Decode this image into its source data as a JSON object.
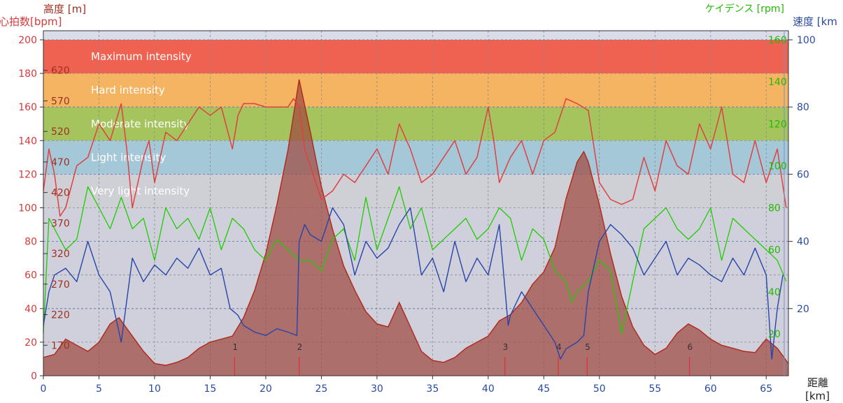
{
  "colors": {
    "heart_rate_axis": "#d63a3a",
    "altitude_axis": "#a03020",
    "cadence_axis": "#22bb00",
    "speed_axis": "#2a4aa0",
    "heart_rate_line": "#e04040",
    "cadence_line": "#20cc00",
    "speed_line": "#2844a8",
    "altitude_fill": "#9e4a40",
    "marker_line": "#e03030"
  },
  "chart_data": {
    "type": "line",
    "axis_titles": {
      "altitude": "高度 [m]",
      "heart_rate": "心拍数[bpm]",
      "cadence": "ケイデンス [rpm]",
      "speed": "速度 [km",
      "distance": "距離",
      "distance_unit": "[km]"
    },
    "x_axis": {
      "range": [
        0,
        67
      ],
      "ticks": [
        0,
        5,
        10,
        15,
        20,
        25,
        30,
        35,
        40,
        45,
        50,
        55,
        60,
        65
      ]
    },
    "heart_rate_axis": {
      "range": [
        0,
        200
      ],
      "ticks": [
        0,
        20,
        40,
        60,
        80,
        100,
        120,
        140,
        160,
        180,
        200
      ]
    },
    "altitude_axis": {
      "range": [
        120,
        670
      ],
      "ticks": [
        170,
        220,
        270,
        320,
        370,
        420,
        470,
        520,
        570,
        620
      ]
    },
    "cadence_axis": {
      "range": [
        0,
        160
      ],
      "ticks": [
        20,
        40,
        60,
        80,
        100,
        120,
        140,
        160
      ]
    },
    "speed_axis": {
      "range": [
        0,
        100
      ],
      "ticks": [
        20,
        40,
        60,
        80,
        100
      ]
    },
    "zones": [
      {
        "label": "Maximum intensity",
        "from": 180,
        "to": 200,
        "color": "#ef6150"
      },
      {
        "label": "Hard intensity",
        "from": 160,
        "to": 180,
        "color": "#f5b461"
      },
      {
        "label": "Moderate intensity",
        "from": 140,
        "to": 160,
        "color": "#a6c45d"
      },
      {
        "label": "Light intensity",
        "from": 120,
        "to": 140,
        "color": "#a5c8d8"
      },
      {
        "label": "Very light intensity",
        "from": 100,
        "to": 120,
        "color": "#cfcfd6"
      }
    ],
    "below_zone_color": "#cfd0dc",
    "markers": [
      {
        "label": "1",
        "x": 17.2
      },
      {
        "label": "2",
        "x": 23.0
      },
      {
        "label": "3",
        "x": 41.5
      },
      {
        "label": "4",
        "x": 46.3
      },
      {
        "label": "5",
        "x": 48.9
      },
      {
        "label": "6",
        "x": 58.1
      }
    ],
    "series": [
      {
        "key": "altitude",
        "name": "高度",
        "units": "m",
        "x": [
          0,
          1,
          2,
          3,
          4,
          5,
          6,
          6.8,
          8,
          9,
          10,
          11,
          12,
          13,
          14,
          15,
          16,
          17,
          18,
          19,
          20,
          21,
          22,
          23,
          24,
          25,
          26,
          27,
          28,
          29,
          30,
          31,
          32,
          33,
          34,
          35,
          36,
          37,
          38,
          39,
          40,
          41,
          42,
          43,
          44,
          45,
          46,
          47,
          48,
          48.6,
          49,
          50,
          51,
          52,
          53,
          54,
          55,
          56,
          57,
          58,
          59,
          60,
          61,
          62,
          63,
          64,
          65,
          66,
          67
        ],
        "values": [
          150,
          155,
          180,
          170,
          160,
          175,
          205,
          215,
          185,
          160,
          140,
          137,
          142,
          150,
          165,
          175,
          180,
          185,
          215,
          260,
          320,
          400,
          490,
          605,
          520,
          430,
          360,
          300,
          260,
          225,
          205,
          200,
          240,
          200,
          160,
          145,
          142,
          150,
          165,
          175,
          185,
          210,
          220,
          240,
          270,
          290,
          330,
          410,
          470,
          487,
          470,
          400,
          320,
          250,
          200,
          170,
          155,
          165,
          190,
          205,
          195,
          180,
          170,
          165,
          160,
          158,
          180,
          165,
          140
        ]
      },
      {
        "key": "heart_rate",
        "name": "心拍数",
        "units": "bpm",
        "x": [
          0,
          0.5,
          1,
          1.5,
          2,
          3,
          4,
          5,
          6,
          7,
          7.5,
          8,
          9,
          9.5,
          10,
          11,
          12,
          13,
          14,
          15,
          16,
          17,
          17.5,
          18,
          19,
          20,
          21,
          22,
          22.5,
          23,
          23.5,
          24,
          25,
          26,
          27,
          28,
          29,
          30,
          31,
          32,
          33,
          34,
          35,
          36,
          37,
          38,
          39,
          40,
          40.5,
          41,
          42,
          43,
          44,
          45,
          46,
          47,
          48,
          49,
          50,
          51,
          52,
          53,
          54,
          55,
          56,
          57,
          58,
          59,
          60,
          61,
          62,
          63,
          64,
          65,
          66,
          66.8
        ],
        "values": [
          110,
          135,
          120,
          95,
          100,
          125,
          130,
          150,
          140,
          162,
          135,
          100,
          130,
          140,
          115,
          145,
          140,
          150,
          160,
          155,
          160,
          135,
          155,
          162,
          162,
          160,
          160,
          160,
          165,
          160,
          135,
          125,
          105,
          110,
          120,
          115,
          125,
          135,
          120,
          150,
          135,
          115,
          120,
          130,
          140,
          120,
          130,
          160,
          140,
          115,
          130,
          140,
          120,
          140,
          145,
          165,
          162,
          158,
          115,
          105,
          102,
          105,
          130,
          110,
          140,
          125,
          120,
          150,
          135,
          160,
          120,
          115,
          140,
          115,
          135,
          100
        ]
      },
      {
        "key": "cadence",
        "name": "ケイデンス",
        "units": "rpm",
        "x": [
          0,
          0.5,
          1,
          2,
          3,
          4,
          5,
          6,
          7,
          8,
          9,
          10,
          11,
          12,
          13,
          14,
          15,
          16,
          17,
          18,
          19,
          20,
          21,
          22,
          23,
          24,
          25,
          26,
          27,
          28,
          29,
          30,
          31,
          32,
          33,
          34,
          35,
          36,
          37,
          38,
          39,
          40,
          41,
          42,
          43,
          44,
          45,
          46,
          47,
          47.5,
          48,
          49,
          50,
          51,
          52,
          53,
          54,
          55,
          56,
          57,
          58,
          59,
          60,
          61,
          62,
          63,
          64,
          65,
          66,
          66.8
        ],
        "values": [
          20,
          75,
          70,
          60,
          65,
          90,
          80,
          70,
          85,
          70,
          75,
          55,
          80,
          70,
          75,
          65,
          80,
          60,
          75,
          70,
          60,
          55,
          65,
          60,
          55,
          55,
          50,
          65,
          70,
          55,
          85,
          60,
          75,
          90,
          70,
          80,
          60,
          65,
          70,
          75,
          65,
          70,
          80,
          75,
          55,
          70,
          65,
          50,
          45,
          35,
          40,
          45,
          55,
          50,
          20,
          45,
          70,
          75,
          80,
          70,
          65,
          70,
          80,
          55,
          75,
          70,
          65,
          60,
          55,
          45
        ]
      },
      {
        "key": "speed",
        "name": "速度",
        "units": "km/h",
        "x": [
          0,
          0.5,
          1,
          2,
          3,
          4,
          5,
          6,
          7,
          8,
          9,
          10,
          11,
          12,
          13,
          14,
          15,
          16,
          16.8,
          17.5,
          18,
          19,
          20,
          21,
          22,
          22.8,
          23,
          23.5,
          24,
          25,
          26,
          27,
          28,
          29,
          30,
          31,
          32,
          33,
          34,
          35,
          36,
          37,
          38,
          39,
          40,
          41,
          41.8,
          42,
          43,
          44,
          45,
          46,
          46.5,
          47,
          48,
          48.6,
          49,
          50,
          51,
          52,
          53,
          54,
          55,
          56,
          57,
          58,
          59,
          60,
          61,
          62,
          63,
          64,
          65,
          65.5,
          66,
          66.5
        ],
        "values": [
          15,
          25,
          30,
          32,
          28,
          40,
          30,
          25,
          10,
          35,
          28,
          33,
          30,
          35,
          32,
          38,
          30,
          32,
          20,
          18,
          15,
          13,
          12,
          14,
          13,
          12,
          40,
          45,
          42,
          40,
          50,
          45,
          30,
          40,
          35,
          38,
          45,
          50,
          30,
          35,
          25,
          40,
          28,
          35,
          30,
          45,
          15,
          18,
          25,
          20,
          15,
          10,
          5,
          8,
          10,
          12,
          25,
          40,
          45,
          42,
          38,
          30,
          35,
          40,
          30,
          35,
          33,
          30,
          28,
          35,
          30,
          38,
          30,
          5,
          20,
          30
        ]
      }
    ]
  }
}
